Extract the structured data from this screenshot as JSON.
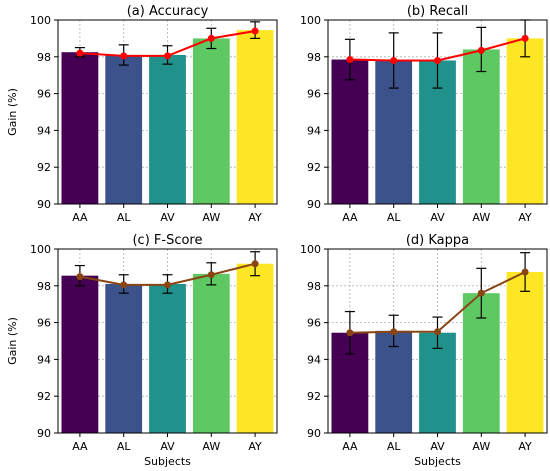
{
  "colors": {
    "bars": [
      "#440154",
      "#3b528b",
      "#21918c",
      "#5ec962",
      "#fde725"
    ],
    "line": "#ff0000",
    "error": "#000000",
    "grid": "#b0b0b0"
  },
  "chart_data": [
    {
      "type": "bar",
      "title": "(a) Accuracy",
      "xlabel": "",
      "ylabel": "Gain (%)",
      "categories": [
        "AA",
        "AL",
        "AV",
        "AW",
        "AY"
      ],
      "values": [
        98.25,
        98.1,
        98.1,
        99.0,
        99.45
      ],
      "errors": [
        0.25,
        0.55,
        0.5,
        0.55,
        0.45
      ],
      "line": [
        98.2,
        98.05,
        98.05,
        99.0,
        99.4
      ],
      "line_color": "#ff0000",
      "ylim": [
        90,
        100
      ],
      "yticks": [
        "90",
        "92",
        "94",
        "96",
        "98",
        "100"
      ],
      "grid": true
    },
    {
      "type": "bar",
      "title": "(b) Recall",
      "xlabel": "",
      "ylabel": "",
      "categories": [
        "AA",
        "AL",
        "AV",
        "AW",
        "AY"
      ],
      "values": [
        97.85,
        97.8,
        97.8,
        98.4,
        99.0
      ],
      "errors": [
        1.1,
        1.5,
        1.5,
        1.2,
        1.0
      ],
      "line": [
        97.85,
        97.8,
        97.8,
        98.35,
        99.0
      ],
      "line_color": "#ff0000",
      "ylim": [
        90,
        100
      ],
      "yticks": [
        "90",
        "92",
        "94",
        "96",
        "98",
        "100"
      ],
      "grid": true
    },
    {
      "type": "bar",
      "title": "(c) F-Score",
      "xlabel": "Subjects",
      "ylabel": "Gain (%)",
      "categories": [
        "AA",
        "AL",
        "AV",
        "AW",
        "AY"
      ],
      "values": [
        98.55,
        98.1,
        98.1,
        98.65,
        99.2
      ],
      "errors": [
        0.55,
        0.5,
        0.5,
        0.6,
        0.65
      ],
      "line": [
        98.5,
        98.05,
        98.05,
        98.6,
        99.2
      ],
      "line_color": "#8b4513",
      "ylim": [
        90,
        100
      ],
      "yticks": [
        "90",
        "92",
        "94",
        "96",
        "98",
        "100"
      ],
      "grid": true
    },
    {
      "type": "bar",
      "title": "(d) Kappa",
      "xlabel": "Subjects",
      "ylabel": "",
      "categories": [
        "AA",
        "AL",
        "AV",
        "AW",
        "AY"
      ],
      "values": [
        95.45,
        95.55,
        95.45,
        97.6,
        98.75
      ],
      "errors": [
        1.15,
        0.85,
        0.85,
        1.35,
        1.05
      ],
      "line": [
        95.45,
        95.5,
        95.5,
        97.6,
        98.75
      ],
      "line_color": "#8b4513",
      "ylim": [
        90,
        100
      ],
      "yticks": [
        "90",
        "92",
        "94",
        "96",
        "98",
        "100"
      ],
      "grid": true
    }
  ]
}
